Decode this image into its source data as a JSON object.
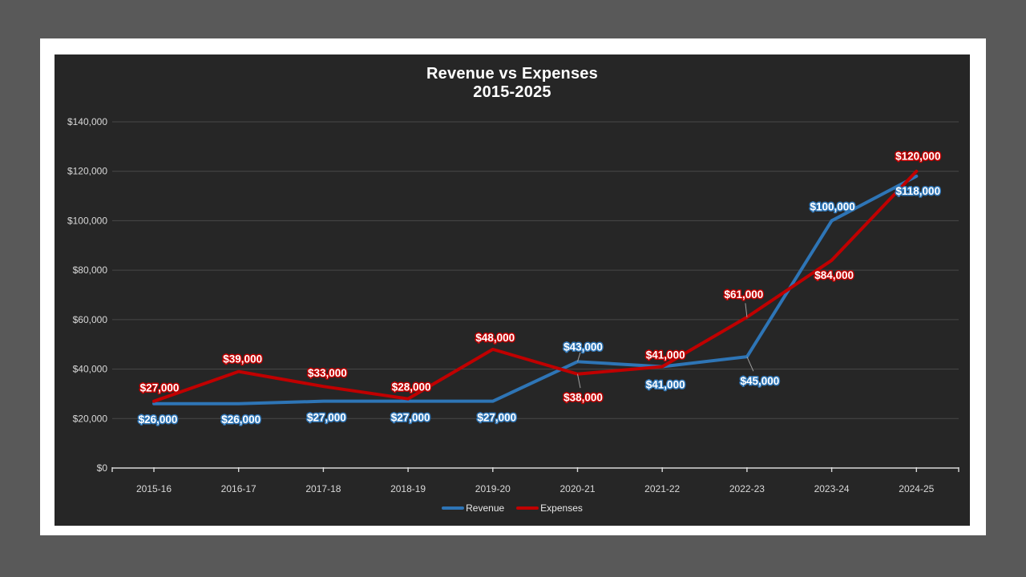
{
  "page": {
    "canvas_color": "#595959",
    "slide_color": "#ffffff",
    "chart_background": "#262626"
  },
  "chart_data": {
    "type": "line",
    "title": "Revenue vs Expenses",
    "subtitle": "2015-2025",
    "categories": [
      "2015-16",
      "2016-17",
      "2017-18",
      "2018-19",
      "2019-20",
      "2020-21",
      "2021-22",
      "2022-23",
      "2023-24",
      "2024-25"
    ],
    "series": [
      {
        "name": "Revenue",
        "color": "#2E75B6",
        "values": [
          26000,
          26000,
          27000,
          27000,
          27000,
          43000,
          41000,
          45000,
          100000,
          118000
        ],
        "labels": [
          "$26,000",
          "$26,000",
          "$27,000",
          "$27,000",
          "$27,000",
          "$43,000",
          "$41,000",
          "$45,000",
          "$100,000",
          "$118,000"
        ],
        "label_offsets": [
          [
            5,
            19
          ],
          [
            3,
            19
          ],
          [
            4,
            20
          ],
          [
            3,
            20
          ],
          [
            5,
            20
          ],
          [
            7,
            -19
          ],
          [
            4,
            22
          ],
          [
            16,
            30
          ],
          [
            1,
            -18
          ],
          [
            2,
            18
          ]
        ],
        "leaders": [
          false,
          false,
          false,
          false,
          false,
          true,
          false,
          true,
          false,
          false
        ]
      },
      {
        "name": "Expenses",
        "color": "#C00000",
        "values": [
          27000,
          39000,
          33000,
          28000,
          48000,
          38000,
          41000,
          61000,
          84000,
          120000
        ],
        "labels": [
          "$27,000",
          "$39,000",
          "$33,000",
          "$28,000",
          "$48,000",
          "$38,000",
          "$41,000",
          "$61,000",
          "$84,000",
          "$120,000"
        ],
        "label_offsets": [
          [
            7,
            -17
          ],
          [
            5,
            -16
          ],
          [
            5,
            -17
          ],
          [
            4,
            -15
          ],
          [
            3,
            -15
          ],
          [
            7,
            29
          ],
          [
            4,
            -15
          ],
          [
            -4,
            -29
          ],
          [
            3,
            18
          ],
          [
            2,
            -19
          ]
        ],
        "leaders": [
          false,
          false,
          false,
          false,
          false,
          true,
          false,
          true,
          false,
          false
        ]
      }
    ],
    "ylim": [
      0,
      140000
    ],
    "ytick_step": 20000,
    "ytick_labels": [
      "$0",
      "$20,000",
      "$40,000",
      "$60,000",
      "$80,000",
      "$100,000",
      "$120,000",
      "$140,000"
    ],
    "grid": "horizontal",
    "legend_position": "bottom",
    "colors": {
      "axis": "#d9d9d9",
      "gridline": "#484848",
      "leader": "#a0a0a0",
      "data_label_fill": "#ffffff",
      "title": "#ffffff"
    }
  }
}
